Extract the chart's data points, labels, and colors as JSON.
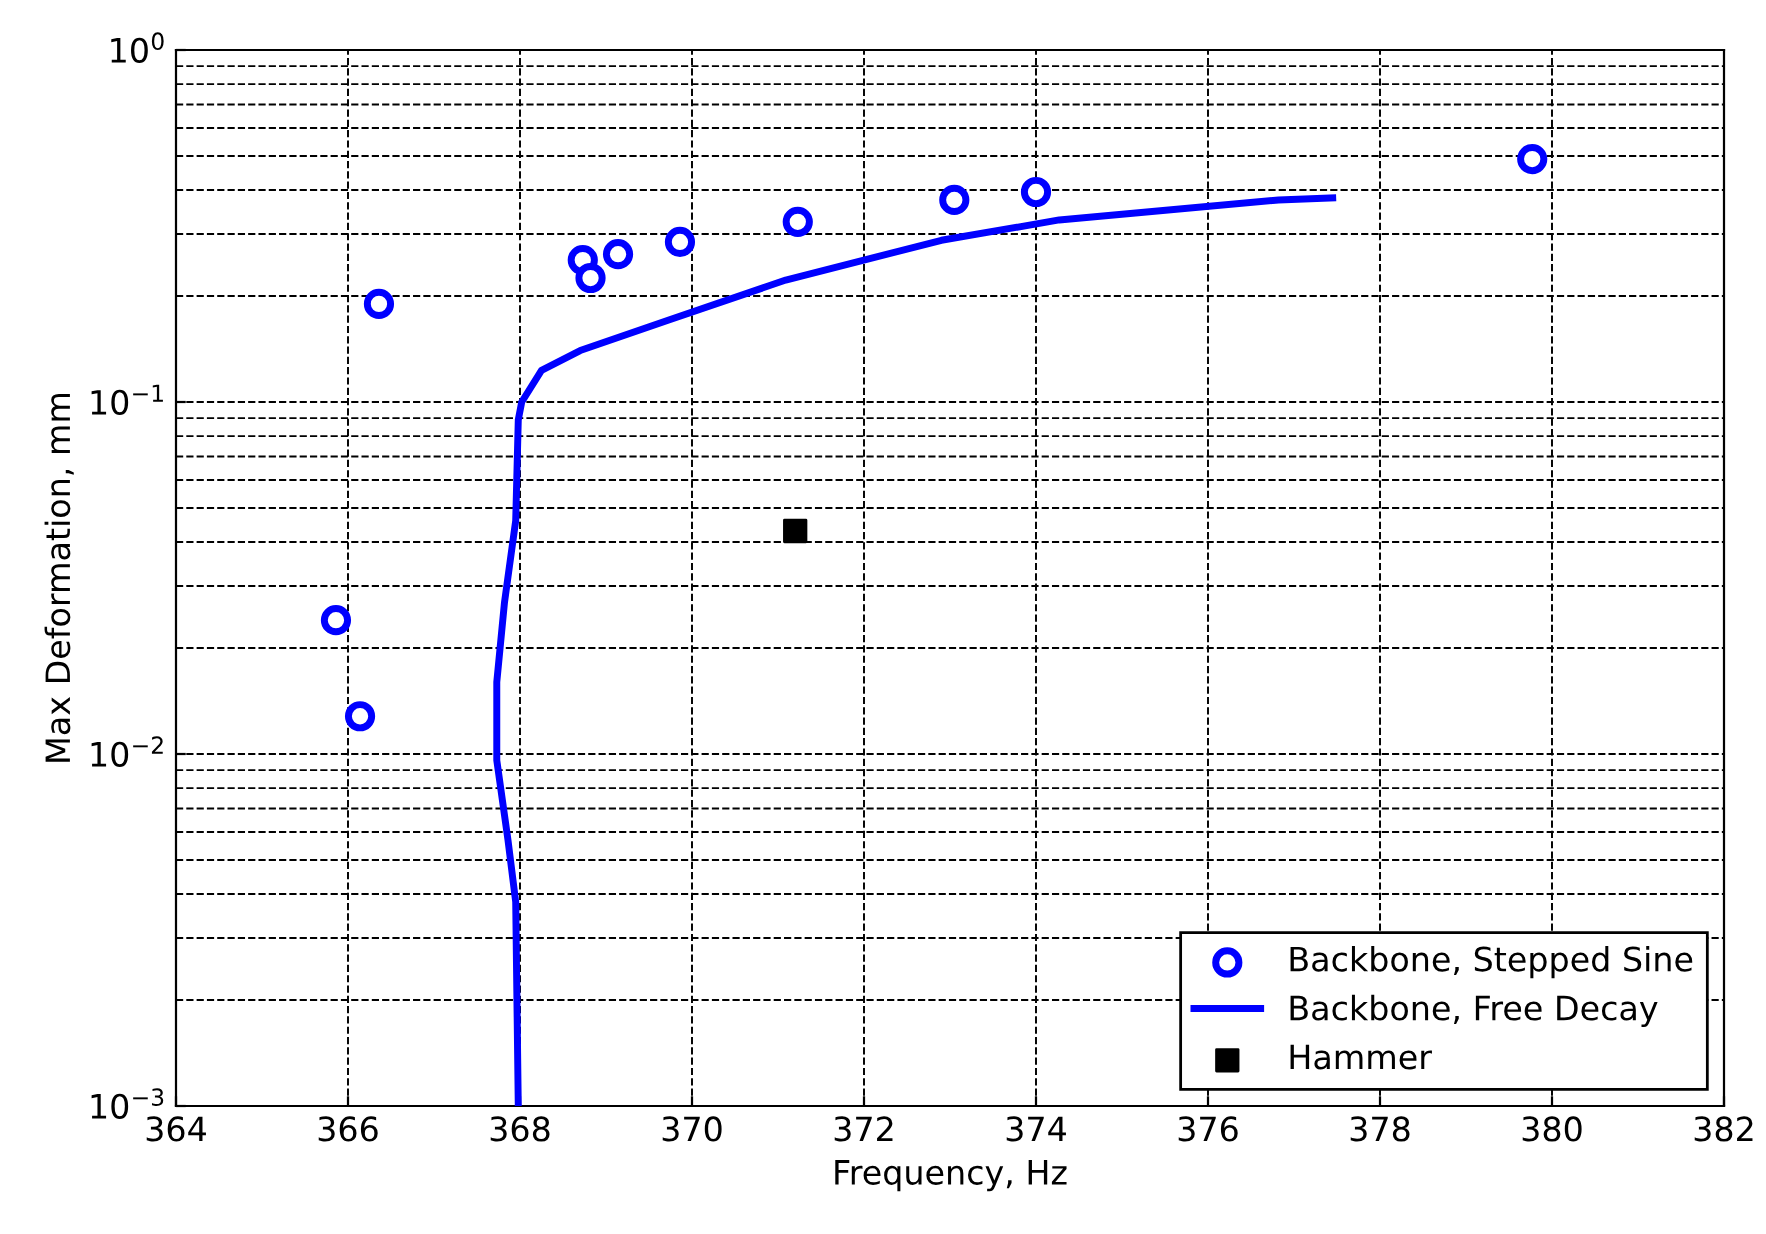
{
  "chart_data": {
    "type": "scatter",
    "xlabel": "Frequency, Hz",
    "ylabel": "Max Deformation, mm",
    "log": "y",
    "grid": true,
    "legend": "bottom right",
    "xlim": [
      364,
      382
    ],
    "xticks": [
      364,
      366,
      368,
      370,
      372,
      374,
      376,
      378,
      380,
      382
    ],
    "ylim": [
      0.001,
      1
    ],
    "yticks": [
      {
        "value": 0.001,
        "label": "10$^{−3}$"
      },
      {
        "value": 0.01,
        "label": "10$^{−2}$"
      },
      {
        "value": 0.1,
        "label": "10$^{−1}$"
      },
      {
        "value": 1,
        "label": "10$^{0}$"
      }
    ],
    "series": [
      {
        "name": "Backbone, Stepped Sine",
        "marker": "circle",
        "color": "#0000ff",
        "x": [
          365.86,
          366.14,
          366.36,
          368.73,
          368.82,
          369.14,
          369.86,
          371.23,
          373.05,
          374.0,
          379.77
        ],
        "values": [
          0.024,
          0.0128,
          0.19,
          0.253,
          0.225,
          0.263,
          0.285,
          0.325,
          0.375,
          0.395,
          0.49
        ]
      },
      {
        "name": "Backbone, Free Decay",
        "type": "line",
        "marker": "none",
        "line_style": "solid",
        "color": "#0000ff",
        "x": [
          367.98,
          367.95,
          367.86,
          367.73,
          367.73,
          367.82,
          367.95,
          367.98,
          368.02,
          368.25,
          368.7,
          369.73,
          371.09,
          372.9,
          374.27,
          376.82,
          377.45
        ],
        "values": [
          0.001,
          0.0038,
          0.0057,
          0.0096,
          0.016,
          0.027,
          0.046,
          0.089,
          0.1,
          0.123,
          0.14,
          0.171,
          0.222,
          0.288,
          0.329,
          0.375,
          0.38
        ]
      },
      {
        "name": "Hammer",
        "marker": "square",
        "color": "#000000",
        "x": [
          371.2
        ],
        "values": [
          0.043
        ]
      }
    ]
  }
}
